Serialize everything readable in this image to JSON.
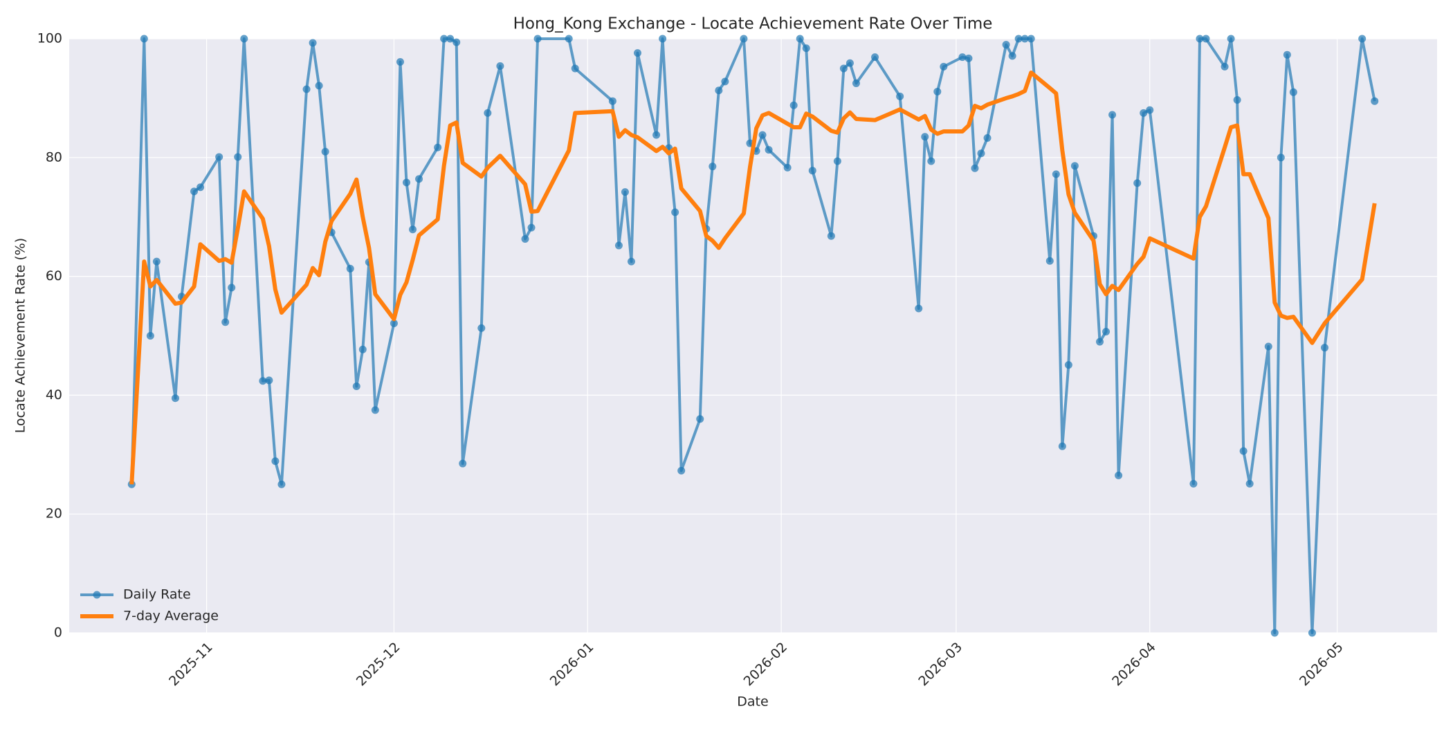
{
  "chart_data": {
    "type": "line",
    "title": "Hong_Kong Exchange - Locate Achievement Rate Over Time",
    "x_label": "Date",
    "y_label": "Locate Achievement Rate (%)",
    "x": [
      "2025-10-20",
      "2025-10-22",
      "2025-10-23",
      "2025-10-24",
      "2025-10-27",
      "2025-10-28",
      "2025-10-30",
      "2025-10-31",
      "2025-11-03",
      "2025-11-04",
      "2025-11-05",
      "2025-11-06",
      "2025-11-07",
      "2025-11-10",
      "2025-11-11",
      "2025-11-12",
      "2025-11-13",
      "2025-11-17",
      "2025-11-18",
      "2025-11-19",
      "2025-11-20",
      "2025-11-21",
      "2025-11-24",
      "2025-11-25",
      "2025-11-26",
      "2025-11-27",
      "2025-11-28",
      "2025-12-01",
      "2025-12-02",
      "2025-12-03",
      "2025-12-04",
      "2025-12-05",
      "2025-12-08",
      "2025-12-09",
      "2025-12-10",
      "2025-12-11",
      "2025-12-12",
      "2025-12-15",
      "2025-12-16",
      "2025-12-18",
      "2025-12-22",
      "2025-12-23",
      "2025-12-24",
      "2025-12-29",
      "2025-12-30",
      "2026-01-05",
      "2026-01-06",
      "2026-01-07",
      "2026-01-08",
      "2026-01-09",
      "2026-01-12",
      "2026-01-13",
      "2026-01-14",
      "2026-01-15",
      "2026-01-16",
      "2026-01-19",
      "2026-01-20",
      "2026-01-21",
      "2026-01-22",
      "2026-01-23",
      "2026-01-26",
      "2026-01-27",
      "2026-01-28",
      "2026-01-29",
      "2026-01-30",
      "2026-02-02",
      "2026-02-03",
      "2026-02-04",
      "2026-02-05",
      "2026-02-06",
      "2026-02-09",
      "2026-02-10",
      "2026-02-11",
      "2026-02-12",
      "2026-02-13",
      "2026-02-16",
      "2026-02-20",
      "2026-02-23",
      "2026-02-24",
      "2026-02-25",
      "2026-02-26",
      "2026-02-27",
      "2026-03-02",
      "2026-03-03",
      "2026-03-04",
      "2026-03-05",
      "2026-03-06",
      "2026-03-09",
      "2026-03-10",
      "2026-03-11",
      "2026-03-12",
      "2026-03-13",
      "2026-03-16",
      "2026-03-17",
      "2026-03-18",
      "2026-03-19",
      "2026-03-20",
      "2026-03-23",
      "2026-03-24",
      "2026-03-25",
      "2026-03-26",
      "2026-03-27",
      "2026-03-30",
      "2026-03-31",
      "2026-04-01",
      "2026-04-08",
      "2026-04-09",
      "2026-04-10",
      "2026-04-13",
      "2026-04-14",
      "2026-04-15",
      "2026-04-16",
      "2026-04-17",
      "2026-04-20",
      "2026-04-21",
      "2026-04-22",
      "2026-04-23",
      "2026-04-24",
      "2026-04-27",
      "2026-04-29",
      "2026-05-05",
      "2026-05-07"
    ],
    "series": [
      {
        "name": "Daily Rate",
        "color": "#1f77b4",
        "markers": true,
        "values": [
          25,
          100,
          50,
          62.5,
          39.5,
          56.6,
          74.3,
          75,
          80.1,
          52.3,
          58.1,
          80.1,
          100,
          42.4,
          42.5,
          28.9,
          25,
          91.5,
          99.3,
          92.1,
          81,
          67.4,
          61.3,
          41.5,
          47.7,
          62.4,
          37.5,
          52.1,
          96.1,
          75.8,
          67.9,
          76.4,
          81.7,
          100,
          100,
          99.4,
          28.5,
          51.3,
          87.5,
          95.4,
          66.3,
          68.2,
          100,
          100,
          95,
          89.5,
          65.2,
          74.2,
          62.5,
          97.6,
          83.8,
          100,
          81.6,
          70.8,
          27.3,
          36,
          68,
          78.5,
          91.3,
          92.8,
          100,
          82.4,
          81.1,
          83.8,
          81.3,
          78.3,
          88.8,
          100,
          98.4,
          77.8,
          66.8,
          79.4,
          95,
          95.9,
          92.5,
          96.9,
          90.3,
          54.6,
          83.5,
          79.4,
          91.1,
          95.3,
          96.9,
          96.7,
          78.2,
          80.7,
          83.3,
          99,
          97.1,
          100,
          100,
          100,
          62.6,
          77.2,
          31.4,
          45.1,
          78.6,
          66.8,
          49,
          50.7,
          87.2,
          26.5,
          75.7,
          87.5,
          88,
          25.1,
          100,
          100,
          95.3,
          100,
          89.7,
          30.6,
          25.1,
          48.2,
          0,
          80,
          97.3,
          91,
          0,
          48,
          100,
          89.5
        ]
      },
      {
        "name": "7-day Average",
        "color": "#ff7f0e",
        "markers": false,
        "values": [
          25,
          62.5,
          58.3,
          59.4,
          55.4,
          55.6,
          58.3,
          65.4,
          62.6,
          62.9,
          62.3,
          68.1,
          74.3,
          69.7,
          65.1,
          57.8,
          53.9,
          58.6,
          61.4,
          60.2,
          65.8,
          69.3,
          73.9,
          76.3,
          70,
          64.8,
          57,
          52.8,
          56.9,
          59,
          62.8,
          66.9,
          69.6,
          78.6,
          85.4,
          85.9,
          79.1,
          76.8,
          78.3,
          80.3,
          75.5,
          70.9,
          71,
          81.2,
          87.5,
          87.8,
          83.5,
          84.6,
          83.8,
          83.4,
          81.1,
          81.8,
          80.7,
          81.5,
          74.8,
          71,
          66.8,
          66,
          64.8,
          66.4,
          70.6,
          78.4,
          84.9,
          87.1,
          87.5,
          85.7,
          85.1,
          85.1,
          87.4,
          86.9,
          84.5,
          84.2,
          86.6,
          87.6,
          86.5,
          86.3,
          88.1,
          86.4,
          87,
          84.7,
          84,
          84.4,
          84.4,
          85.4,
          88.7,
          88.3,
          88.9,
          90,
          90.3,
          90.7,
          91.2,
          94.3,
          91.7,
          90.8,
          81.2,
          73.8,
          70.7,
          66,
          58.7,
          57,
          58.4,
          57.7,
          62.1,
          63.3,
          66.4,
          63,
          70,
          71.8,
          81.7,
          85.1,
          85.4,
          77.2,
          77.2,
          69.8,
          55.6,
          53.4,
          53,
          53.2,
          48.8,
          52.1,
          59.5,
          72.3
        ]
      }
    ],
    "xlim": [
      "2025-10-10",
      "2026-05-17"
    ],
    "xticks": [
      {
        "value": "2025-11-01",
        "label": "2025-11"
      },
      {
        "value": "2025-12-01",
        "label": "2025-12"
      },
      {
        "value": "2026-01-01",
        "label": "2026-01"
      },
      {
        "value": "2026-02-01",
        "label": "2026-02"
      },
      {
        "value": "2026-03-01",
        "label": "2026-03"
      },
      {
        "value": "2026-04-01",
        "label": "2026-04"
      },
      {
        "value": "2026-05-01",
        "label": "2026-05"
      }
    ],
    "ylim": [
      0,
      100
    ],
    "yticks": [
      0,
      20,
      40,
      60,
      80,
      100
    ],
    "grid": true,
    "legend": "lower left"
  }
}
